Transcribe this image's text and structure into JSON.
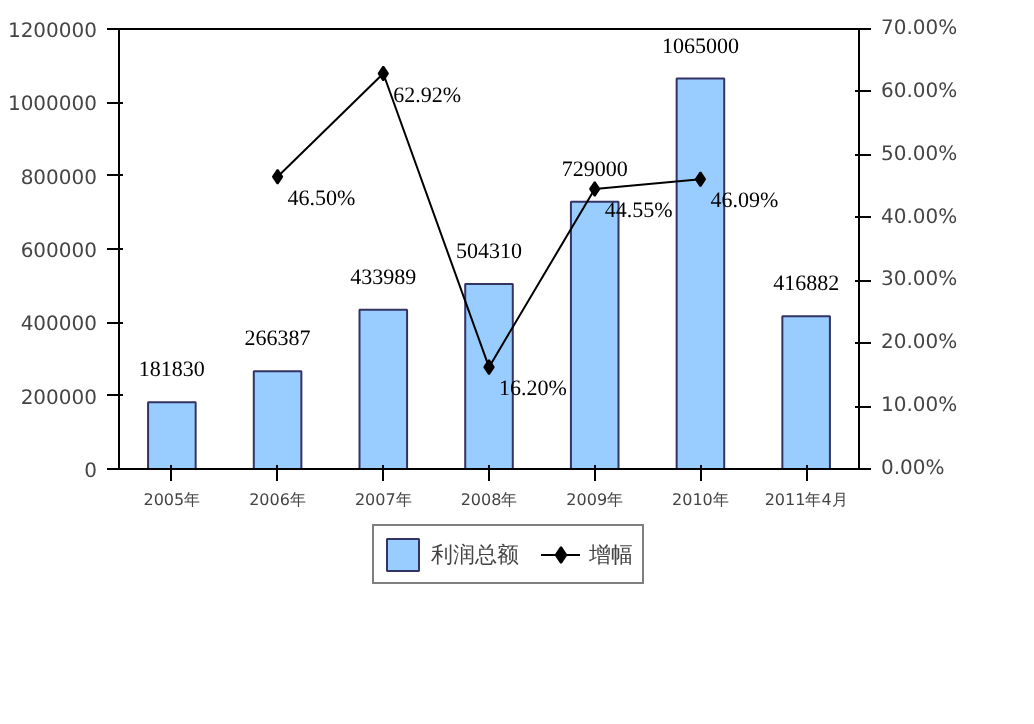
{
  "chart_data": {
    "type": "bar",
    "categories": [
      "2005年",
      "2006年",
      "2007年",
      "2008年",
      "2009年",
      "2010年",
      "2011年4月"
    ],
    "series": [
      {
        "name": "利润总额",
        "color": "#99ccff",
        "values": [
          181830,
          266387,
          433989,
          504310,
          729000,
          1065000,
          416882
        ]
      },
      {
        "name": "增幅",
        "type": "line",
        "axis": "y2",
        "color": "#000000",
        "marker": "diamond",
        "values": [
          null,
          46.5,
          62.92,
          16.2,
          44.55,
          46.09,
          null
        ],
        "value_labels": [
          null,
          "46.50%",
          "62.92%",
          "16.20%",
          "44.55%",
          "46.09%",
          null
        ]
      }
    ],
    "data_labels": true,
    "ylim": [
      0,
      1200000
    ],
    "yticks": [
      0,
      200000,
      400000,
      600000,
      800000,
      1000000,
      1200000
    ],
    "y2lim": [
      0,
      70
    ],
    "y2ticks": [
      {
        "value": 0,
        "label": "0.00%"
      },
      {
        "value": 10,
        "label": "10.00%"
      },
      {
        "value": 20,
        "label": "20.00%"
      },
      {
        "value": 30,
        "label": "30.00%"
      },
      {
        "value": 40,
        "label": "40.00%"
      },
      {
        "value": 50,
        "label": "50.00%"
      },
      {
        "value": 60,
        "label": "60.00%"
      },
      {
        "value": 70,
        "label": "70.00%"
      }
    ],
    "grid": false,
    "legend": "bottom"
  }
}
